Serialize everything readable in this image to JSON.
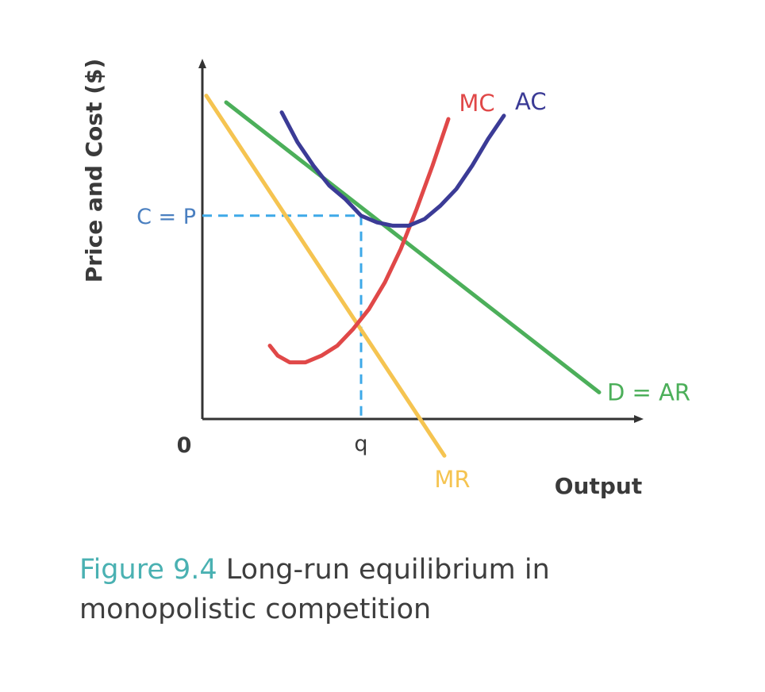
{
  "chart_data": {
    "type": "line",
    "ylabel": "Price and Cost ($)",
    "xlabel": "Output",
    "origin_label": "0",
    "x_tick_label": "q",
    "y_tick_label": "C = P",
    "x_equilibrium": 40,
    "y_equilibrium": 61,
    "xlim": [
      0,
      110
    ],
    "ylim": [
      0,
      100
    ],
    "grid": false,
    "series": [
      {
        "name": "D = AR",
        "color": "#4caf5a",
        "points": [
          [
            6,
            95
          ],
          [
            100,
            8
          ]
        ]
      },
      {
        "name": "MR",
        "color": "#f5c451",
        "points": [
          [
            1,
            97
          ],
          [
            61,
            -11
          ]
        ]
      },
      {
        "name": "MC",
        "color": "#e04848",
        "points": [
          [
            17,
            22
          ],
          [
            19,
            19
          ],
          [
            22,
            17
          ],
          [
            26,
            17
          ],
          [
            30,
            19
          ],
          [
            34,
            22
          ],
          [
            38,
            27
          ],
          [
            42,
            33
          ],
          [
            46,
            41
          ],
          [
            50,
            51
          ],
          [
            54,
            63
          ],
          [
            58,
            76
          ],
          [
            62,
            90
          ]
        ]
      },
      {
        "name": "AC",
        "color": "#3b3b96",
        "points": [
          [
            20,
            92
          ],
          [
            24,
            83
          ],
          [
            28,
            76
          ],
          [
            32,
            70
          ],
          [
            36,
            66
          ],
          [
            40,
            61
          ],
          [
            44,
            59
          ],
          [
            48,
            58
          ],
          [
            52,
            58
          ],
          [
            56,
            60
          ],
          [
            60,
            64
          ],
          [
            64,
            69
          ],
          [
            68,
            76
          ],
          [
            72,
            84
          ],
          [
            76,
            91
          ]
        ]
      }
    ]
  },
  "caption": {
    "number": "Figure 9.4",
    "text": "Long-run equilibrium in monopolistic competition"
  }
}
